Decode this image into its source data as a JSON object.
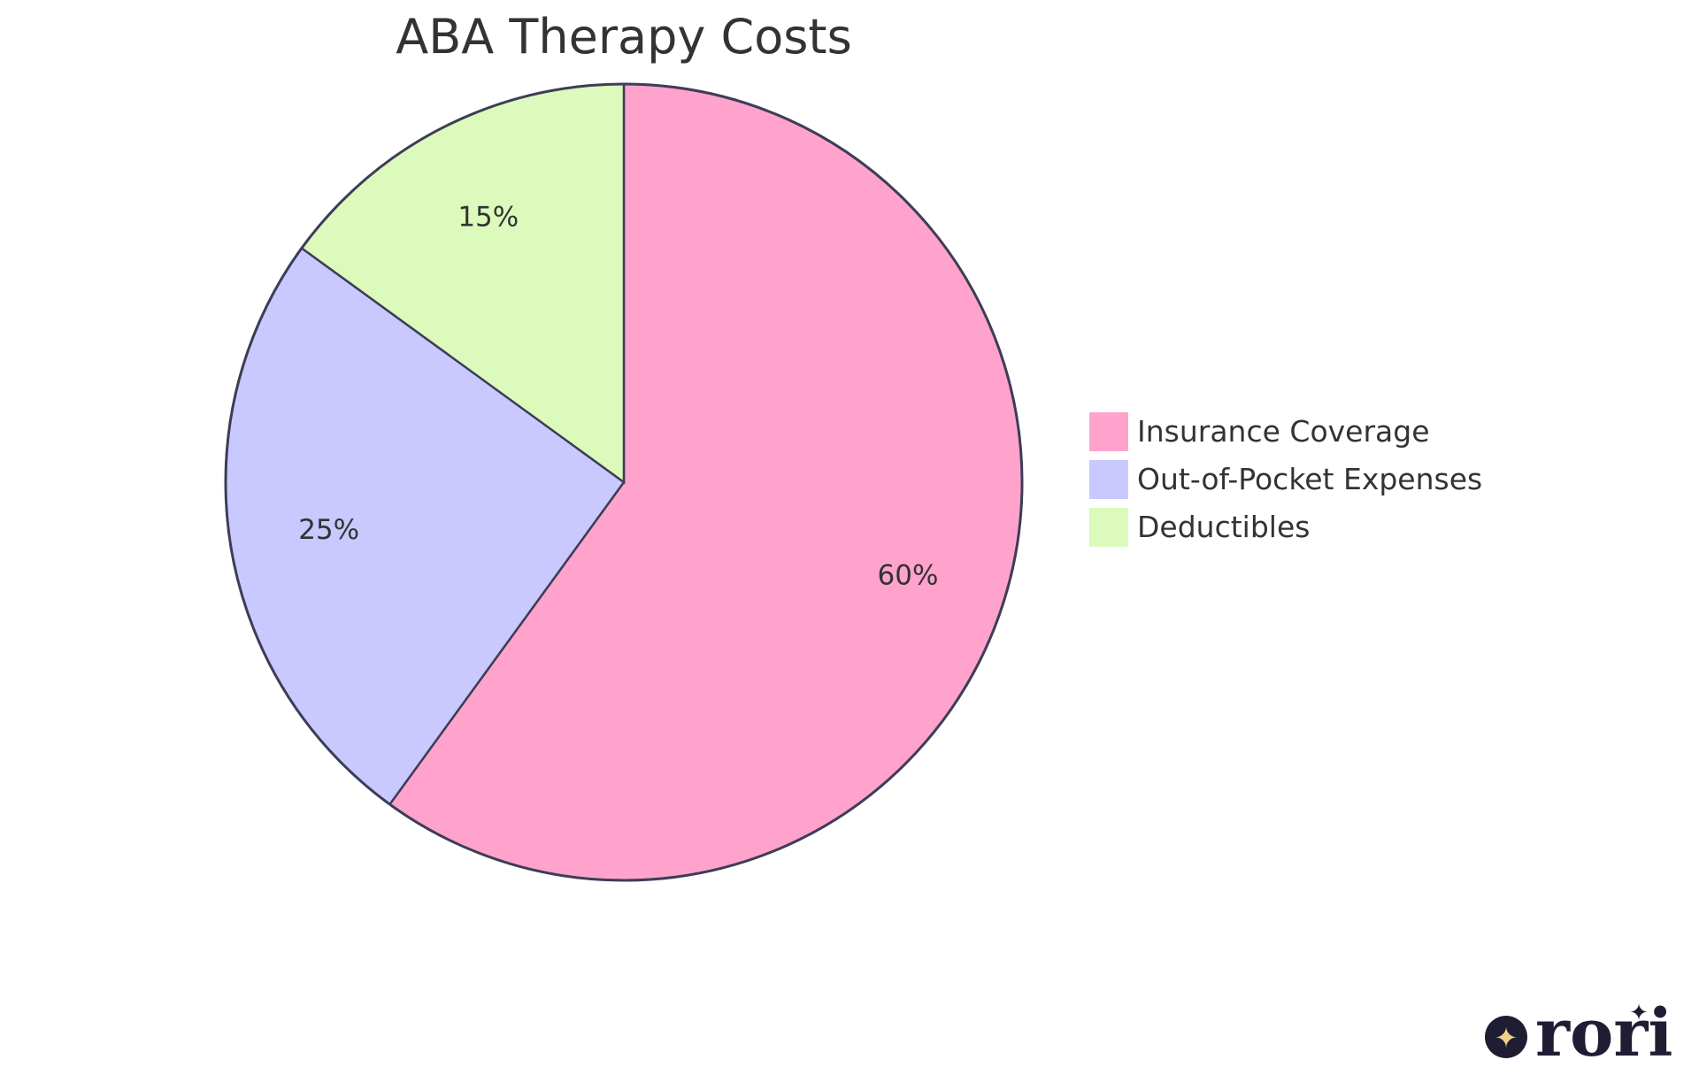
{
  "chart_data": {
    "type": "pie",
    "title": "ABA Therapy Costs",
    "categories": [
      "Insurance Coverage",
      "Out-of-Pocket Expenses",
      "Deductibles"
    ],
    "values": [
      60,
      25,
      15
    ],
    "labels": [
      "60%",
      "25%",
      "15%"
    ],
    "colors": [
      "#ffa3cc",
      "#c9c9ff",
      "#dbfabb"
    ],
    "stroke_color": "#3d3d57",
    "legend_placement": "right"
  },
  "logo": {
    "text": "rori",
    "star_glyph": "✦",
    "colors": {
      "mark": "#1f1d33",
      "star": "#f2d18c"
    }
  }
}
